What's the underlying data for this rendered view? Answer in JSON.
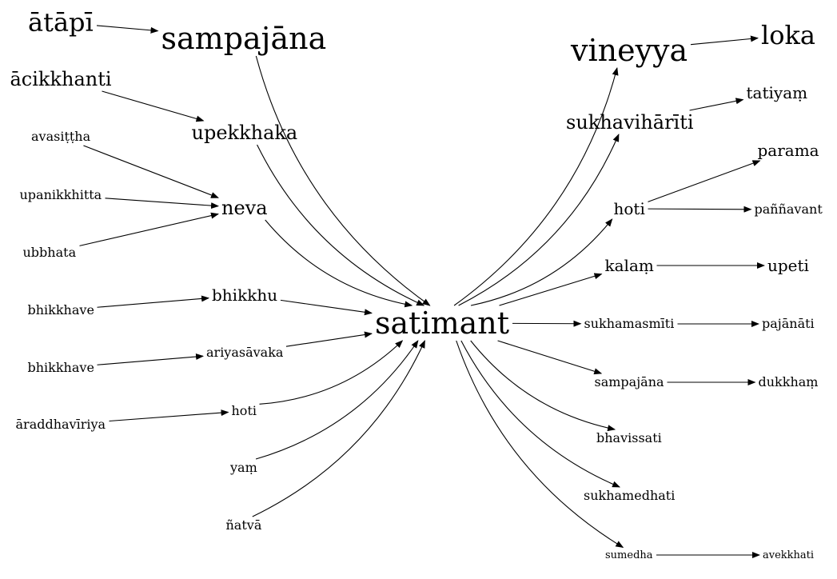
{
  "nodes": {
    "satimant": "satimant",
    "atapi": "ātāpī",
    "sampajana_top": "sampajāna",
    "acikkhanti": "ācikkhanti",
    "upekkhaka": "upekkhaka",
    "avasittha": "avasiṭṭha",
    "upanikkhitta": "upanikkhitta",
    "neva": "neva",
    "ubbhata": "ubbhata",
    "bhikkhave_1": "bhikkhave",
    "bhikkhu": "bhikkhu",
    "bhikkhave_2": "bhikkhave",
    "ariyasavaka": "ariyasāvaka",
    "araddhaviriya": "āraddhavīriya",
    "hoti_left": "hoti",
    "yam": "yaṃ",
    "natva": "ñatvā",
    "vineyya": "vineyya",
    "loka": "loka",
    "sukhaviharīti": "sukhavihārīti",
    "tatiyam": "tatiyaṃ",
    "parama": "parama",
    "hoti_right": "hoti",
    "pannavant": "paññavant",
    "kalam": "kalaṃ",
    "upeti": "upeti",
    "sukhamasmiti": "sukhamasmīti",
    "pajanati": "pajānāti",
    "sampajana_right": "sampajāna",
    "dukkham": "dukkhaṃ",
    "bhavissati": "bhavissati",
    "sukhamedhati": "sukhamedhati",
    "sumedha": "sumedha",
    "avekkhati": "avekkhati"
  },
  "edges": [
    [
      "atapi",
      "sampajana_top"
    ],
    [
      "acikkhanti",
      "upekkhaka"
    ],
    [
      "avasittha",
      "neva"
    ],
    [
      "upanikkhitta",
      "neva"
    ],
    [
      "ubbhata",
      "neva"
    ],
    [
      "bhikkhave_1",
      "bhikkhu"
    ],
    [
      "bhikkhave_2",
      "ariyasavaka"
    ],
    [
      "araddhaviriya",
      "hoti_left"
    ],
    [
      "sampajana_top",
      "satimant"
    ],
    [
      "upekkhaka",
      "satimant"
    ],
    [
      "neva",
      "satimant"
    ],
    [
      "bhikkhu",
      "satimant"
    ],
    [
      "ariyasavaka",
      "satimant"
    ],
    [
      "hoti_left",
      "satimant"
    ],
    [
      "yam",
      "satimant"
    ],
    [
      "natva",
      "satimant"
    ],
    [
      "satimant",
      "vineyya"
    ],
    [
      "satimant",
      "sukhaviharīti"
    ],
    [
      "satimant",
      "hoti_right"
    ],
    [
      "satimant",
      "kalam"
    ],
    [
      "satimant",
      "sukhamasmiti"
    ],
    [
      "satimant",
      "sampajana_right"
    ],
    [
      "satimant",
      "bhavissati"
    ],
    [
      "satimant",
      "sukhamedhati"
    ],
    [
      "satimant",
      "sumedha"
    ],
    [
      "vineyya",
      "loka"
    ],
    [
      "sukhaviharīti",
      "tatiyam"
    ],
    [
      "hoti_right",
      "parama"
    ],
    [
      "hoti_right",
      "pannavant"
    ],
    [
      "kalam",
      "upeti"
    ],
    [
      "sukhamasmiti",
      "pajanati"
    ],
    [
      "sampajana_right",
      "dukkham"
    ],
    [
      "sumedha",
      "avekkhati"
    ]
  ]
}
